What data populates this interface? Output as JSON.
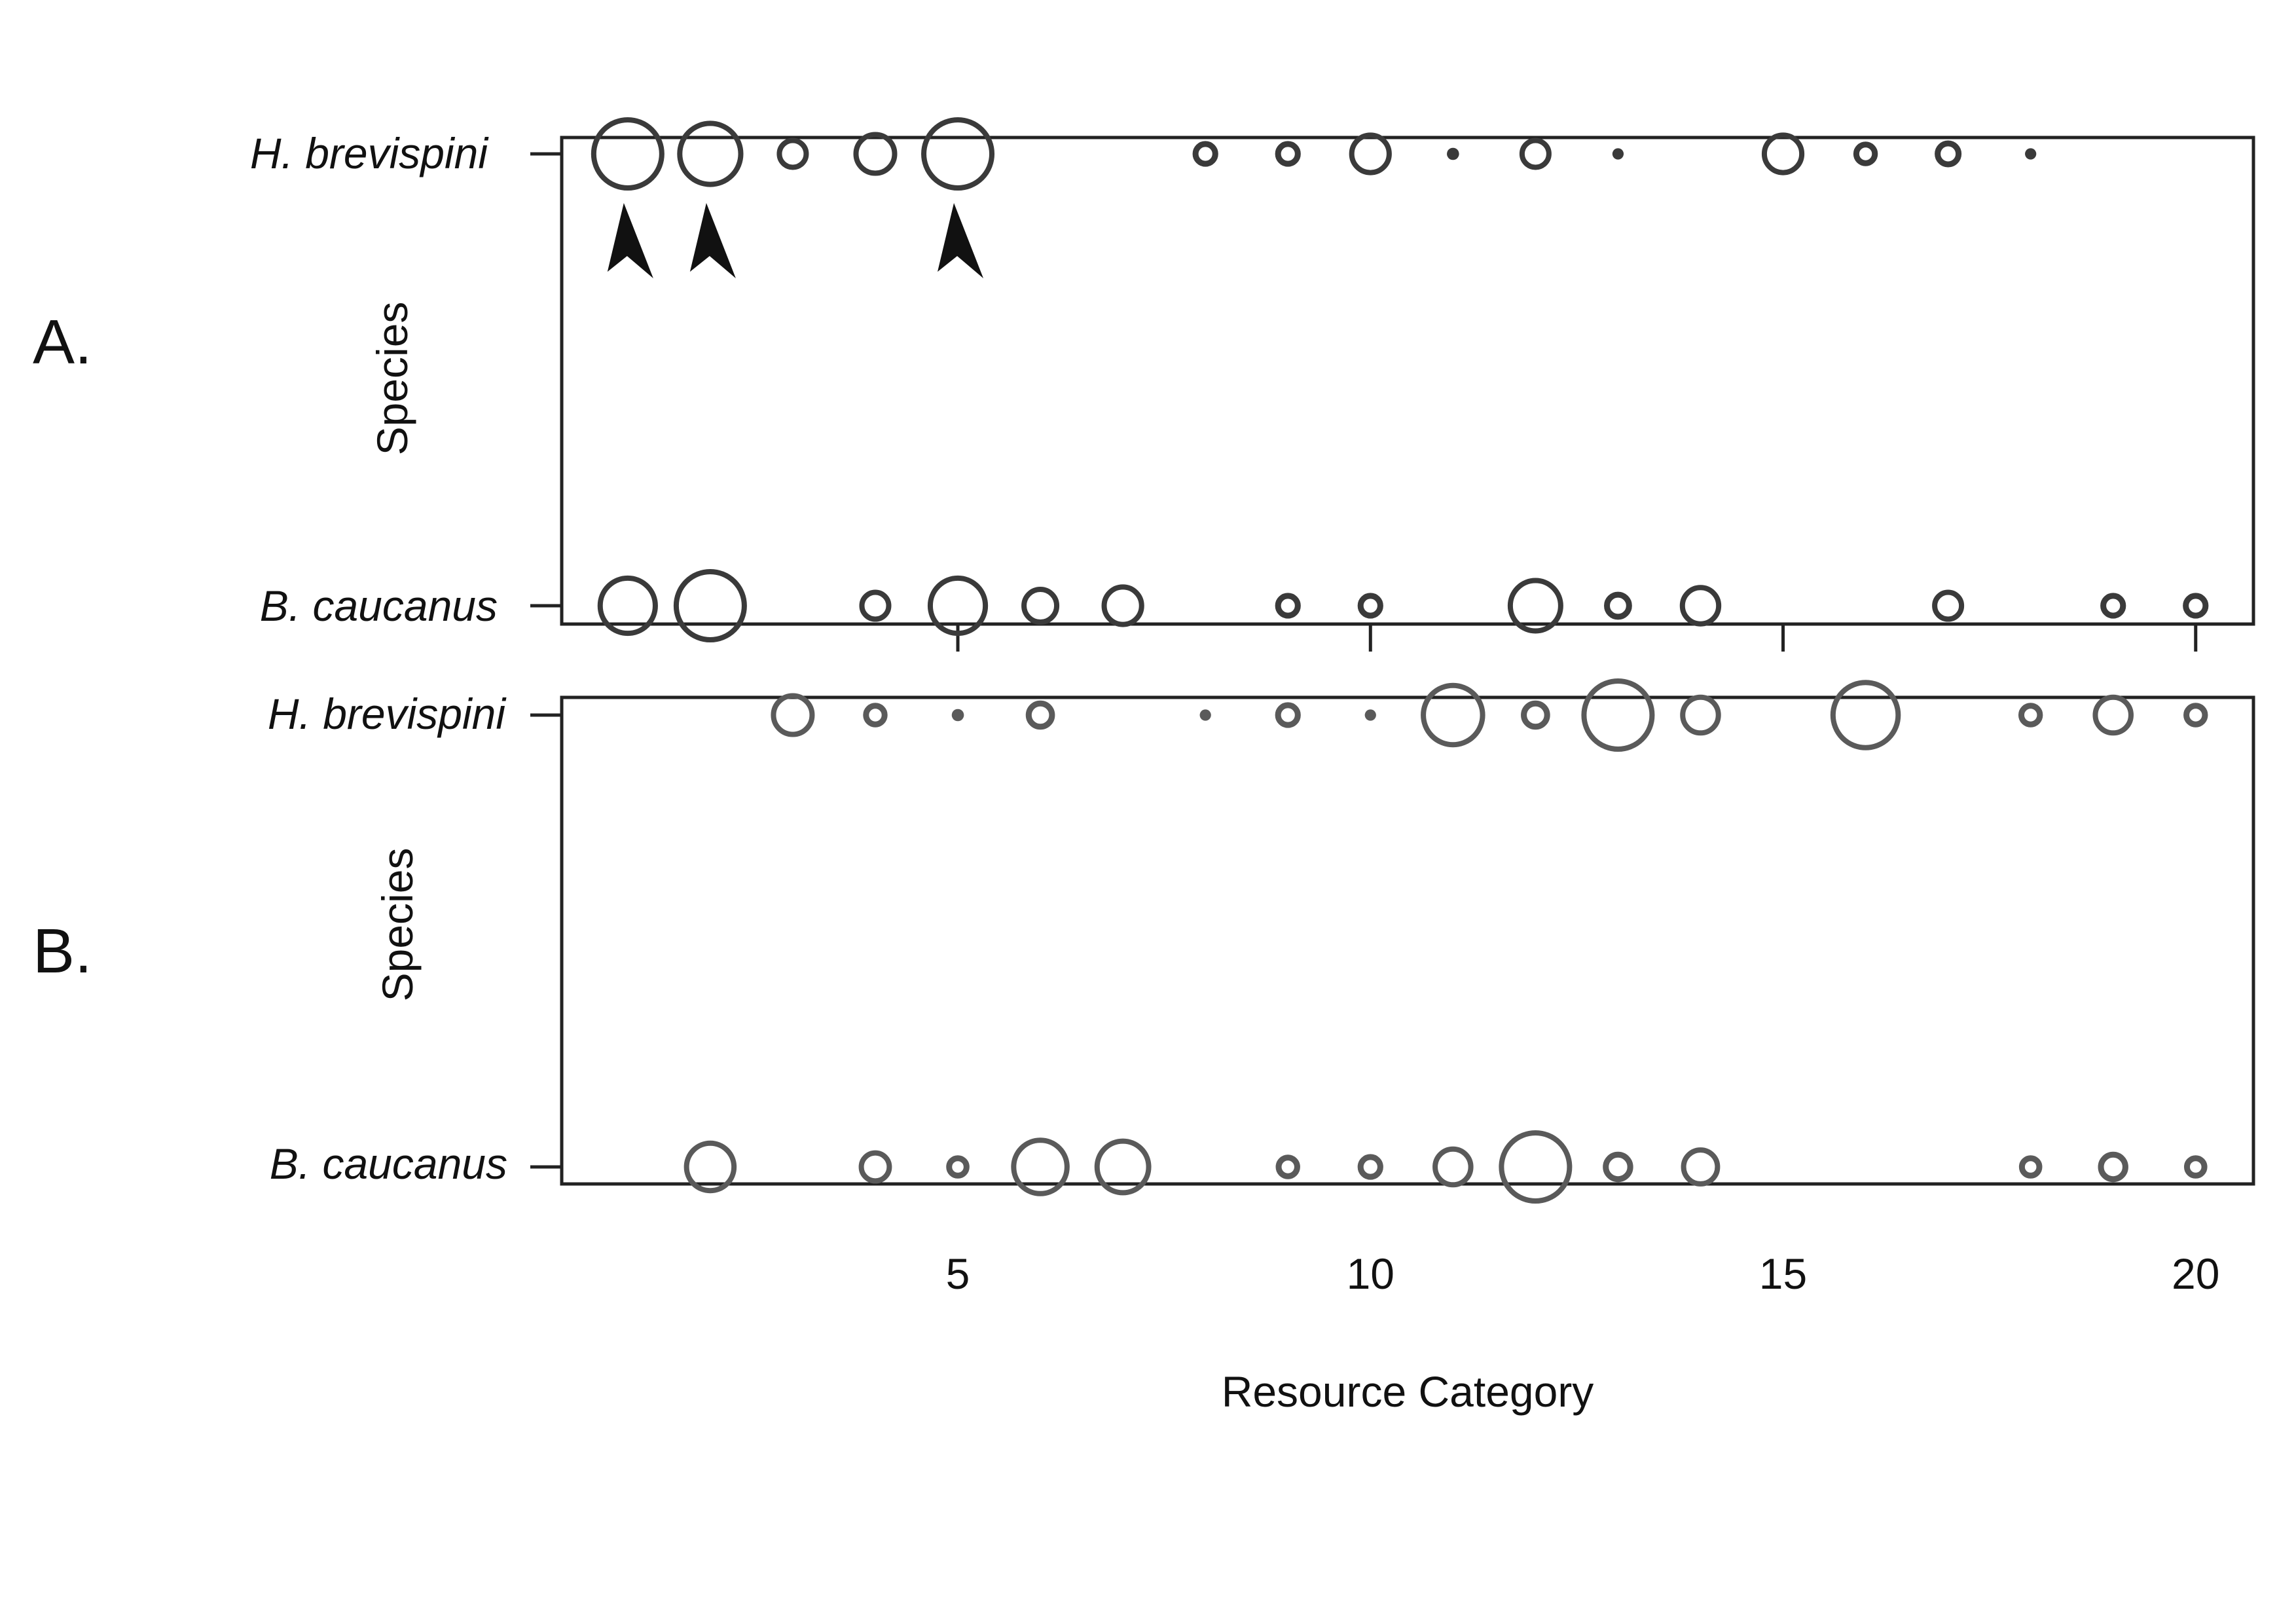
{
  "panel_labels": [
    "A.",
    "B."
  ],
  "chart_data": [
    {
      "type": "scatter",
      "panel": "A.",
      "ylabel": "Species",
      "xlabel": "",
      "categories": [
        "H. brevispini",
        "B. caucanus"
      ],
      "xlim": [
        0.2,
        20.7
      ],
      "size_encoding": "circle size = relative use of resource category",
      "series": [
        {
          "name": "H. brevispini",
          "x": [
            1,
            2,
            3,
            4,
            5,
            8,
            9,
            10,
            11,
            12,
            13,
            15,
            16,
            17,
            18
          ],
          "size": [
            1.0,
            0.88,
            0.3,
            0.5,
            1.0,
            0.18,
            0.18,
            0.48,
            0.12,
            0.3,
            0.1,
            0.48,
            0.16,
            0.2,
            0.1
          ]
        },
        {
          "name": "B. caucanus",
          "x": [
            1,
            2,
            4,
            5,
            6,
            7,
            9,
            10,
            12,
            13,
            14,
            17,
            19,
            20
          ],
          "size": [
            0.78,
            1.0,
            0.3,
            0.78,
            0.4,
            0.48,
            0.18,
            0.18,
            0.7,
            0.22,
            0.46,
            0.3,
            0.18,
            0.18
          ]
        }
      ],
      "annotations": [
        {
          "type": "arrowhead",
          "x": 1,
          "series": "H. brevispini"
        },
        {
          "type": "arrowhead",
          "x": 2,
          "series": "H. brevispini"
        },
        {
          "type": "arrowhead",
          "x": 5,
          "series": "H. brevispini"
        }
      ],
      "grid": false
    },
    {
      "type": "scatter",
      "panel": "B.",
      "ylabel": "Species",
      "xlabel": "Resource Category",
      "xticks": [
        5,
        10,
        15,
        20
      ],
      "categories": [
        "H. brevispini",
        "B. caucanus"
      ],
      "xlim": [
        0.2,
        20.7
      ],
      "size_encoding": "circle size = relative use of resource category",
      "series": [
        {
          "name": "H. brevispini",
          "x": [
            3,
            4,
            5,
            6,
            8,
            9,
            10,
            11,
            12,
            13,
            14,
            16,
            18,
            19,
            20
          ],
          "size": [
            0.5,
            0.16,
            0.12,
            0.24,
            0.1,
            0.18,
            0.1,
            0.85,
            0.24,
            1.0,
            0.45,
            0.95,
            0.16,
            0.45,
            0.16
          ]
        },
        {
          "name": "B. caucanus",
          "x": [
            2,
            4,
            5,
            6,
            7,
            9,
            10,
            11,
            12,
            13,
            14,
            18,
            19,
            20
          ],
          "size": [
            0.65,
            0.32,
            0.14,
            0.75,
            0.72,
            0.16,
            0.18,
            0.45,
            1.0,
            0.26,
            0.42,
            0.14,
            0.26,
            0.14
          ]
        }
      ],
      "grid": false
    }
  ]
}
